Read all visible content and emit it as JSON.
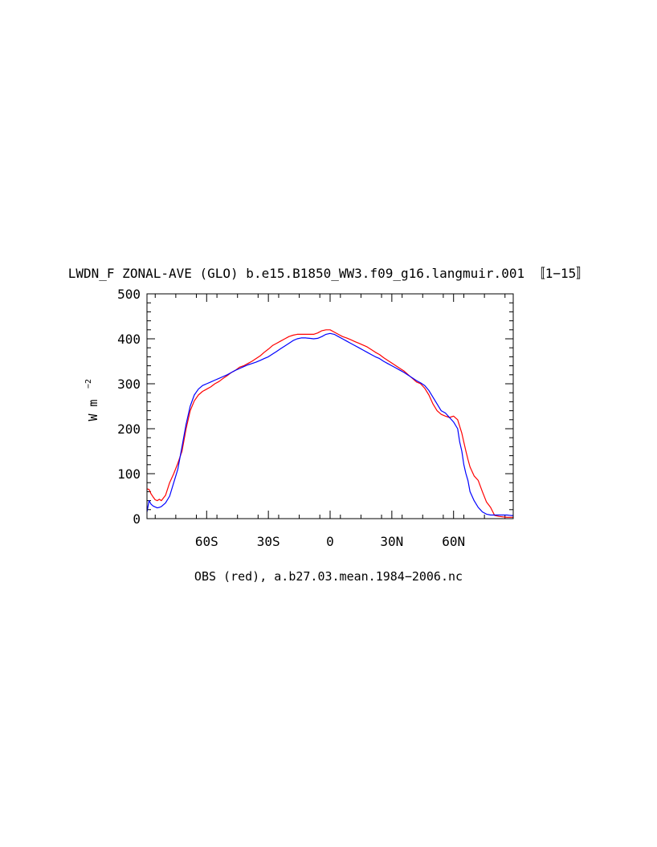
{
  "chart_data": {
    "type": "line",
    "title": "LWDN_F ZONAL-AVE (GLO) b.e15.B1850_WW3.f09_g16.langmuir.001 〚1−15〛",
    "ylabel_main": "W m",
    "ylabel_exp": "−2",
    "xlabel": "OBS (red), a.b27.03.mean.1984−2006.nc",
    "xlim": [
      -89,
      89
    ],
    "ylim": [
      0,
      500
    ],
    "xticks": [
      {
        "value": -60,
        "label": "60S"
      },
      {
        "value": -30,
        "label": "30S"
      },
      {
        "value": 0,
        "label": "0"
      },
      {
        "value": 30,
        "label": "30N"
      },
      {
        "value": 60,
        "label": "60N"
      }
    ],
    "yticks": [
      {
        "value": 0,
        "label": "0"
      },
      {
        "value": 100,
        "label": "100"
      },
      {
        "value": 200,
        "label": "200"
      },
      {
        "value": 300,
        "label": "300"
      },
      {
        "value": 400,
        "label": "400"
      },
      {
        "value": 500,
        "label": "500"
      }
    ],
    "grid": false,
    "series": [
      {
        "color": "#ff0000",
        "x": [
          -89,
          -88,
          -87,
          -86,
          -85,
          -84,
          -83,
          -82,
          -80,
          -78,
          -76,
          -74,
          -72,
          -70,
          -68,
          -66,
          -64,
          -62,
          -60,
          -58,
          -56,
          -54,
          -52,
          -50,
          -48,
          -46,
          -44,
          -42,
          -40,
          -38,
          -36,
          -34,
          -32,
          -30,
          -28,
          -26,
          -24,
          -22,
          -20,
          -18,
          -16,
          -14,
          -12,
          -10,
          -8,
          -6,
          -4,
          -2,
          0,
          2,
          4,
          6,
          8,
          10,
          12,
          14,
          16,
          18,
          20,
          22,
          24,
          26,
          28,
          30,
          32,
          34,
          36,
          38,
          40,
          42,
          44,
          46,
          48,
          50,
          52,
          54,
          56,
          58,
          60,
          62,
          63,
          64,
          65,
          66,
          67,
          68,
          70,
          72,
          74,
          76,
          78,
          80,
          82,
          84,
          86,
          88,
          89
        ],
        "y": [
          66,
          65,
          55,
          48,
          42,
          40,
          43,
          40,
          52,
          80,
          100,
          123,
          150,
          200,
          240,
          262,
          275,
          283,
          288,
          293,
          300,
          305,
          312,
          318,
          325,
          330,
          337,
          340,
          345,
          350,
          356,
          362,
          370,
          377,
          385,
          390,
          395,
          400,
          405,
          408,
          410,
          410,
          410,
          410,
          410,
          413,
          418,
          420,
          420,
          415,
          410,
          405,
          402,
          398,
          394,
          390,
          386,
          382,
          376,
          370,
          365,
          358,
          352,
          346,
          340,
          334,
          328,
          320,
          312,
          304,
          300,
          290,
          275,
          255,
          240,
          232,
          228,
          225,
          228,
          220,
          205,
          190,
          170,
          150,
          132,
          115,
          95,
          85,
          60,
          37,
          25,
          7,
          5,
          4,
          3,
          3,
          3
        ],
        "name": ""
      },
      {
        "color": "#0000ff",
        "x": [
          -89,
          -88,
          -87,
          -86,
          -85,
          -84,
          -83,
          -82,
          -80,
          -78,
          -76,
          -74,
          -72,
          -70,
          -68,
          -66,
          -64,
          -62,
          -60,
          -58,
          -56,
          -54,
          -52,
          -50,
          -48,
          -46,
          -44,
          -42,
          -40,
          -38,
          -36,
          -34,
          -32,
          -30,
          -28,
          -26,
          -24,
          -22,
          -20,
          -18,
          -16,
          -14,
          -12,
          -10,
          -8,
          -6,
          -4,
          -2,
          0,
          2,
          4,
          6,
          8,
          10,
          12,
          14,
          16,
          18,
          20,
          22,
          24,
          26,
          28,
          30,
          32,
          34,
          36,
          38,
          40,
          42,
          44,
          46,
          48,
          50,
          52,
          54,
          56,
          58,
          60,
          62,
          63,
          64,
          65,
          66,
          67,
          68,
          70,
          72,
          74,
          76,
          78,
          80,
          82,
          84,
          86,
          88,
          89
        ],
        "y": [
          15,
          40,
          32,
          28,
          26,
          24,
          25,
          27,
          35,
          50,
          80,
          110,
          160,
          210,
          250,
          275,
          288,
          296,
          300,
          304,
          308,
          312,
          316,
          320,
          325,
          330,
          334,
          338,
          342,
          345,
          348,
          352,
          356,
          360,
          366,
          372,
          378,
          384,
          390,
          396,
          400,
          402,
          402,
          401,
          400,
          401,
          405,
          410,
          412,
          410,
          405,
          400,
          395,
          390,
          385,
          380,
          375,
          370,
          365,
          360,
          356,
          350,
          345,
          340,
          335,
          330,
          325,
          319,
          313,
          307,
          302,
          296,
          285,
          270,
          255,
          240,
          235,
          225,
          215,
          200,
          170,
          150,
          120,
          100,
          85,
          60,
          40,
          25,
          15,
          10,
          8,
          8,
          8,
          8,
          8,
          7,
          7
        ],
        "name": ""
      }
    ]
  }
}
